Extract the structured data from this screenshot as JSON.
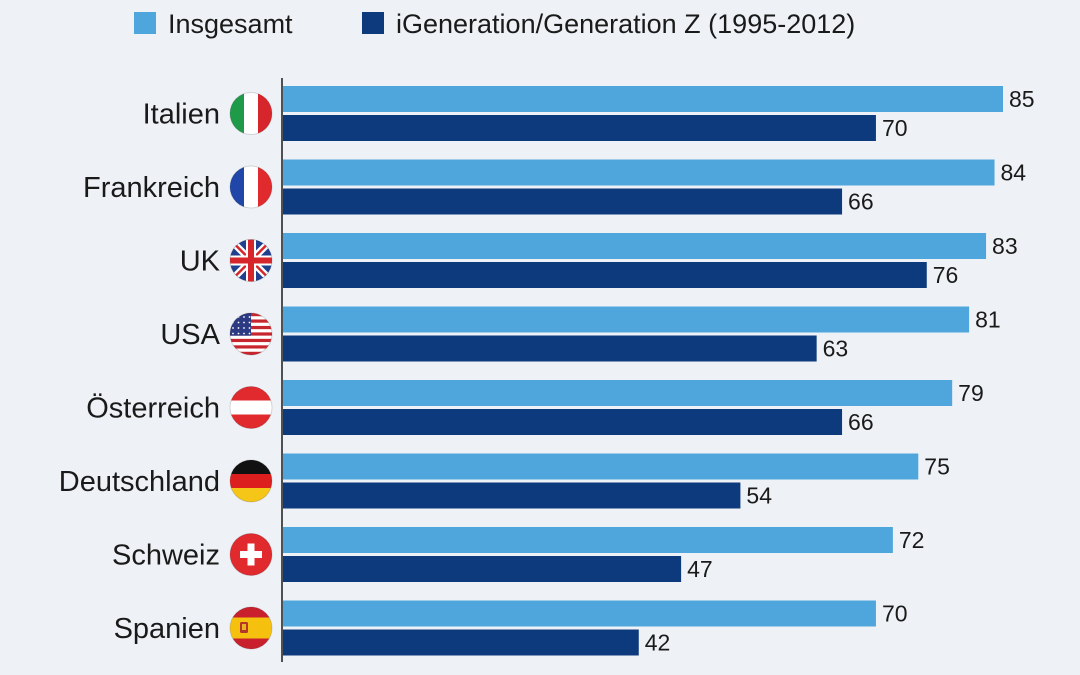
{
  "chart_data": {
    "type": "bar",
    "orientation": "horizontal",
    "categories": [
      "Italien",
      "Frankreich",
      "UK",
      "USA",
      "Österreich",
      "Deutschland",
      "Schweiz",
      "Spanien"
    ],
    "category_flags": [
      "italy-flag-icon",
      "france-flag-icon",
      "uk-flag-icon",
      "usa-flag-icon",
      "austria-flag-icon",
      "germany-flag-icon",
      "switzerland-flag-icon",
      "spain-flag-icon"
    ],
    "series": [
      {
        "name": "Insgesamt",
        "color": "#4fa6dc",
        "values": [
          85,
          84,
          83,
          81,
          79,
          75,
          72,
          70
        ]
      },
      {
        "name": "iGeneration/Generation Z (1995-2012)",
        "color": "#0d3a7c",
        "values": [
          70,
          66,
          76,
          63,
          66,
          54,
          47,
          42
        ]
      }
    ],
    "xlim": [
      0,
      85
    ],
    "legend_position": "top-right",
    "data_labels": true,
    "grid": false
  }
}
